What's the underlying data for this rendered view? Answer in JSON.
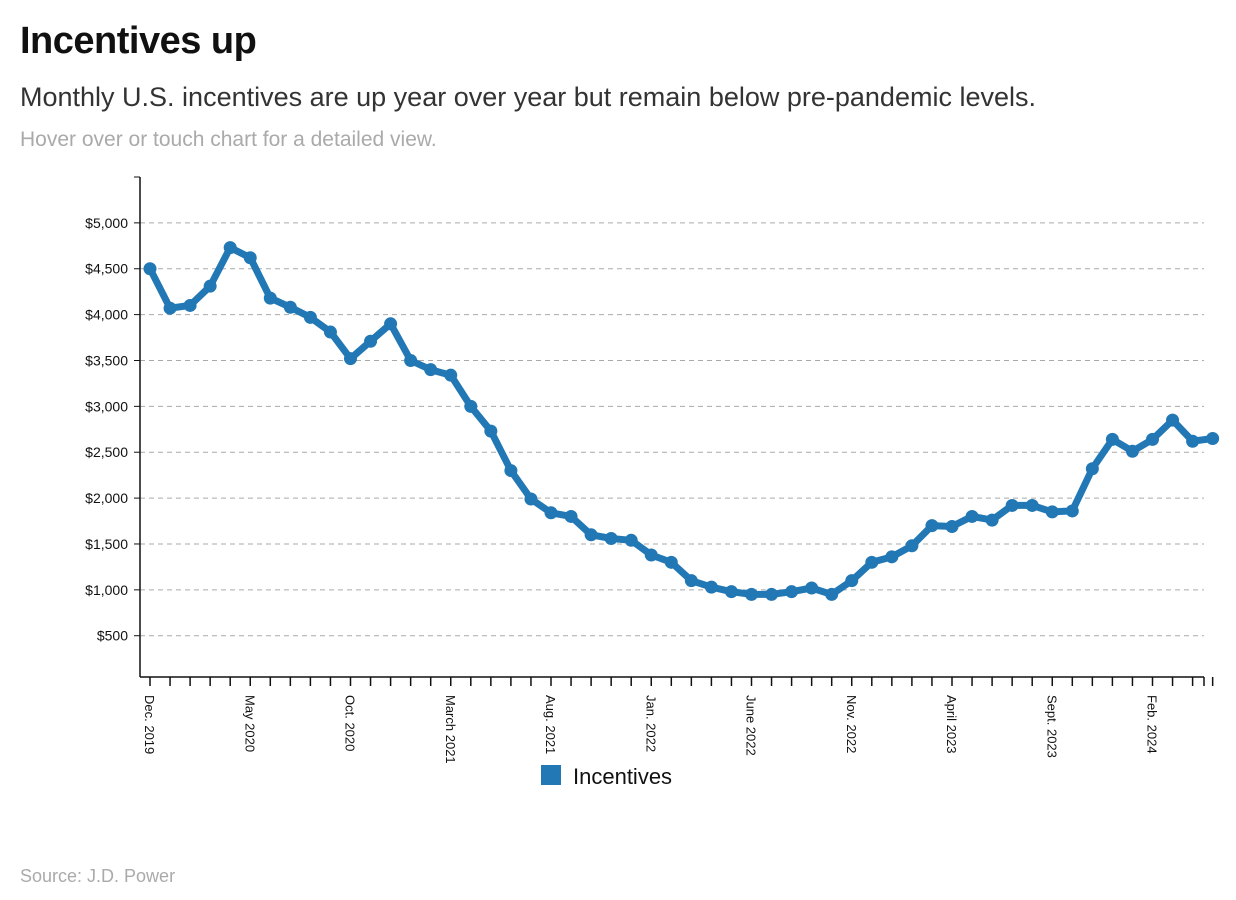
{
  "header": {
    "title": "Incentives up",
    "subtitle": "Monthly U.S. incentives are up year over year but remain below pre-pandemic levels.",
    "hint": "Hover over or touch chart for a detailed view."
  },
  "footer": {
    "source": "Source: J.D. Power"
  },
  "colors": {
    "series": "#2278b5",
    "grid": "#aaaaaa",
    "axis": "#111111"
  },
  "chart_data": {
    "type": "line",
    "title": "",
    "xlabel": "",
    "ylabel": "",
    "ylim": [
      50,
      5500
    ],
    "yticks": [
      500,
      1000,
      1500,
      2000,
      2500,
      3000,
      3500,
      4000,
      4500,
      5000
    ],
    "ytick_labels": [
      "$500",
      "$1,000",
      "$1,500",
      "$2,000",
      "$2,500",
      "$3,000",
      "$3,500",
      "$4,000",
      "$4,500",
      "$5,000"
    ],
    "grid": "horizontal dashed",
    "legend": {
      "position": "bottom-center"
    },
    "x_labels": [
      {
        "index": 0,
        "label": "Dec. 2019"
      },
      {
        "index": 5,
        "label": "May 2020"
      },
      {
        "index": 10,
        "label": "Oct. 2020"
      },
      {
        "index": 15,
        "label": "March 2021"
      },
      {
        "index": 20,
        "label": "Aug. 2021"
      },
      {
        "index": 25,
        "label": "Jan. 2022"
      },
      {
        "index": 30,
        "label": "June 2022"
      },
      {
        "index": 35,
        "label": "Nov. 2022"
      },
      {
        "index": 40,
        "label": "April 2023"
      },
      {
        "index": 45,
        "label": "Sept. 2023"
      },
      {
        "index": 50,
        "label": "Feb. 2024"
      }
    ],
    "series": [
      {
        "name": "Incentives",
        "values": [
          4500,
          4070,
          4100,
          4310,
          4730,
          4620,
          4180,
          4080,
          3970,
          3810,
          3520,
          3710,
          3900,
          3500,
          3400,
          3340,
          3000,
          2730,
          2300,
          1990,
          1840,
          1800,
          1600,
          1560,
          1540,
          1380,
          1300,
          1100,
          1030,
          980,
          950,
          950,
          980,
          1020,
          950,
          1100,
          1300,
          1360,
          1480,
          1700,
          1690,
          1800,
          1760,
          1920,
          1920,
          1850,
          1860,
          2320,
          2640,
          2510,
          2640,
          2850,
          2620,
          2650
        ]
      }
    ]
  }
}
